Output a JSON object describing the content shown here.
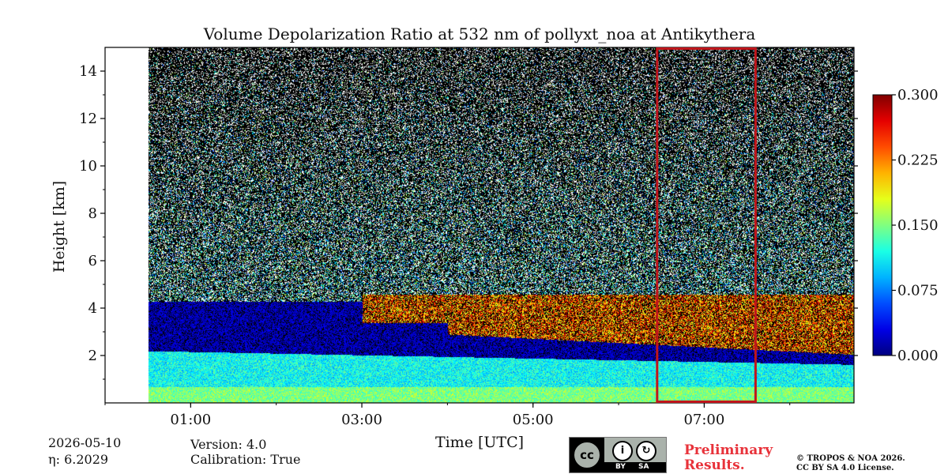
{
  "chart_data": {
    "type": "heatmap",
    "title": "Volume Depolarization Ratio at 532 nm of pollyxt_noa at Antikythera",
    "xlabel": "Time [UTC]",
    "ylabel": "Height [km]",
    "xlim_hours": [
      0.0,
      8.75
    ],
    "ylim_km": [
      0,
      15
    ],
    "x_ticks": [
      {
        "value": 1,
        "label": "01:00"
      },
      {
        "value": 3,
        "label": "03:00"
      },
      {
        "value": 5,
        "label": "05:00"
      },
      {
        "value": 7,
        "label": "07:00"
      }
    ],
    "y_ticks": [
      2,
      4,
      6,
      8,
      10,
      12,
      14
    ],
    "colorbar": {
      "min": 0.0,
      "max": 0.3,
      "ticks": [
        "0.000",
        "0.075",
        "0.150",
        "0.225",
        "0.300"
      ],
      "colormap": "jet"
    },
    "data_start_hour": 0.5,
    "highlight_box": {
      "x_start": 6.45,
      "x_end": 7.6,
      "y_start": 0,
      "y_end": 15,
      "color": "#c0161c"
    },
    "layers": [
      {
        "from_km": 0.0,
        "to_km": 0.7,
        "value": 0.14
      },
      {
        "from_km": 0.7,
        "to_km": 2.2,
        "value": 0.11
      },
      {
        "from_km": 2.2,
        "to_km": 3.4,
        "value": 0.02
      },
      {
        "from_km": 3.4,
        "to_km": 4.3,
        "value": 0.2
      }
    ]
  },
  "footer": {
    "date": "2026-05-10",
    "eta": "η: 6.2029",
    "version": "Version: 4.0",
    "calibration": "Calibration: True",
    "preliminary_line1": "Preliminary",
    "preliminary_line2": "Results.",
    "copyright_line1": "© TROPOS & NOA 2026.",
    "copyright_line2": "CC BY SA 4.0 License.",
    "badge_cc": "cc",
    "badge_by": "BY",
    "badge_sa": "SA"
  }
}
